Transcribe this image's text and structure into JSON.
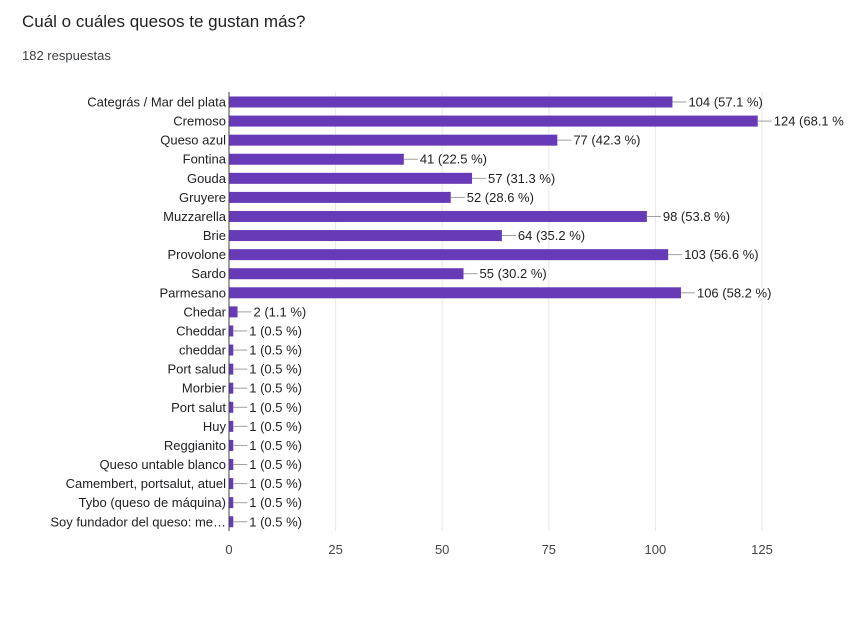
{
  "form": {
    "question": "Cuál o cuáles quesos te gustan más?",
    "responses": "182 respuestas"
  },
  "colors": {
    "bar": "#673ab7",
    "grid": "#e8e8e8",
    "axis": "#3c4043",
    "text": "#202124",
    "connector": "#9e9e9e"
  },
  "chart_data": {
    "type": "bar",
    "orientation": "horizontal",
    "title": "",
    "xlabel": "",
    "ylabel": "",
    "xlim": [
      0,
      125
    ],
    "xticks": [
      0,
      25,
      50,
      75,
      100,
      125
    ],
    "grid": true,
    "categories": [
      "Categrás / Mar del plata",
      "Cremoso",
      "Queso azul",
      "Fontina",
      "Gouda",
      "Gruyere",
      "Muzzarella",
      "Brie",
      "Provolone",
      "Sardo",
      "Parmesano",
      "Chedar",
      "Cheddar",
      "cheddar",
      "Port salud",
      "Morbier",
      "Port salut",
      "Huy",
      "Reggianito",
      "Queso untable blanco",
      "Camembert, portsalut, atuel",
      "Tybo (queso de máquina)",
      "Soy fundador del queso: me…"
    ],
    "values": [
      104,
      124,
      77,
      41,
      57,
      52,
      98,
      64,
      103,
      55,
      106,
      2,
      1,
      1,
      1,
      1,
      1,
      1,
      1,
      1,
      1,
      1,
      1
    ],
    "data_labels": [
      "104 (57.1 %)",
      "124 (68.1 %",
      "77 (42.3 %)",
      "41 (22.5 %)",
      "57 (31.3 %)",
      "52 (28.6 %)",
      "98 (53.8 %)",
      "64 (35.2 %)",
      "103 (56.6 %)",
      "55 (30.2 %)",
      "106 (58.2 %)",
      "2 (1.1 %)",
      "1 (0.5 %)",
      "1 (0.5 %)",
      "1 (0.5 %)",
      "1 (0.5 %)",
      "1 (0.5 %)",
      "1 (0.5 %)",
      "1 (0.5 %)",
      "1 (0.5 %)",
      "1 (0.5 %)",
      "1 (0.5 %)",
      "1 (0.5 %)"
    ]
  }
}
